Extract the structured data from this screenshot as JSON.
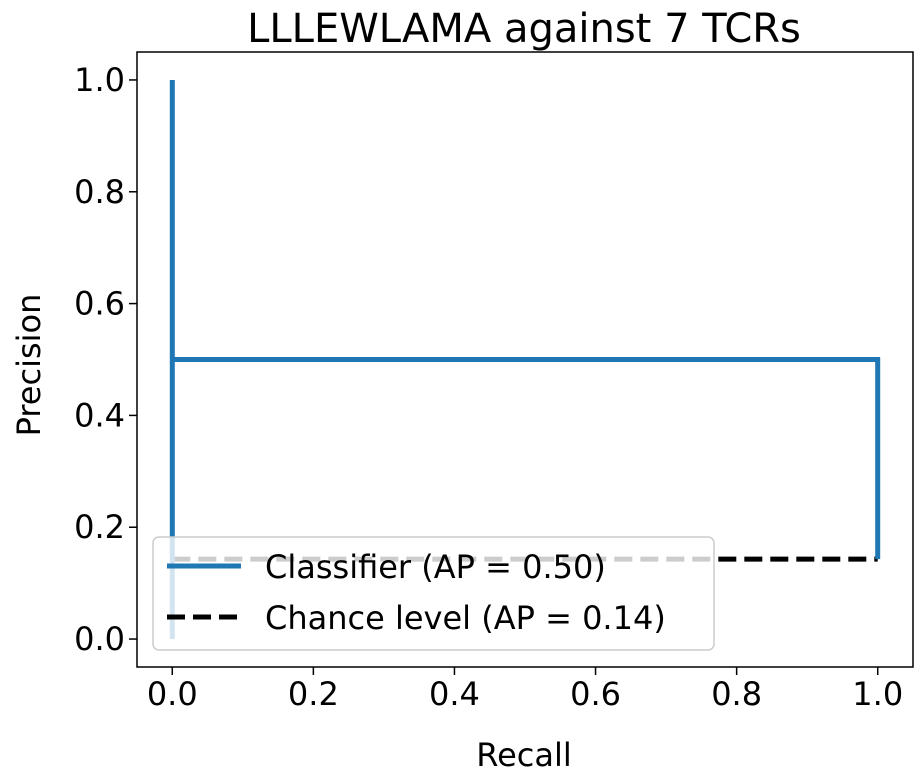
{
  "chart_data": {
    "type": "line",
    "title": "LLLEWLAMA against 7 TCRs",
    "xlabel": "Recall",
    "ylabel": "Precision",
    "xlim": [
      -0.05,
      1.05
    ],
    "ylim": [
      -0.05,
      1.05
    ],
    "xticks": [
      0.0,
      0.2,
      0.4,
      0.6,
      0.8,
      1.0
    ],
    "yticks": [
      0.0,
      0.2,
      0.4,
      0.6,
      0.8,
      1.0
    ],
    "xtick_labels": [
      "0.0",
      "0.2",
      "0.4",
      "0.6",
      "0.8",
      "1.0"
    ],
    "ytick_labels": [
      "0.0",
      "0.2",
      "0.4",
      "0.6",
      "0.8",
      "1.0"
    ],
    "grid": false,
    "legend_position": "lower-left",
    "series": [
      {
        "name": "Classifier (AP = 0.50)",
        "style": "solid",
        "color": "#1f77b4",
        "x": [
          0.0,
          0.0,
          0.0,
          1.0,
          1.0
        ],
        "y": [
          1.0,
          0.0,
          0.5,
          0.5,
          0.143
        ]
      },
      {
        "name": "Chance level (AP = 0.14)",
        "style": "dashed",
        "color": "#000000",
        "x": [
          0.0,
          1.0
        ],
        "y": [
          0.143,
          0.143
        ]
      }
    ]
  }
}
